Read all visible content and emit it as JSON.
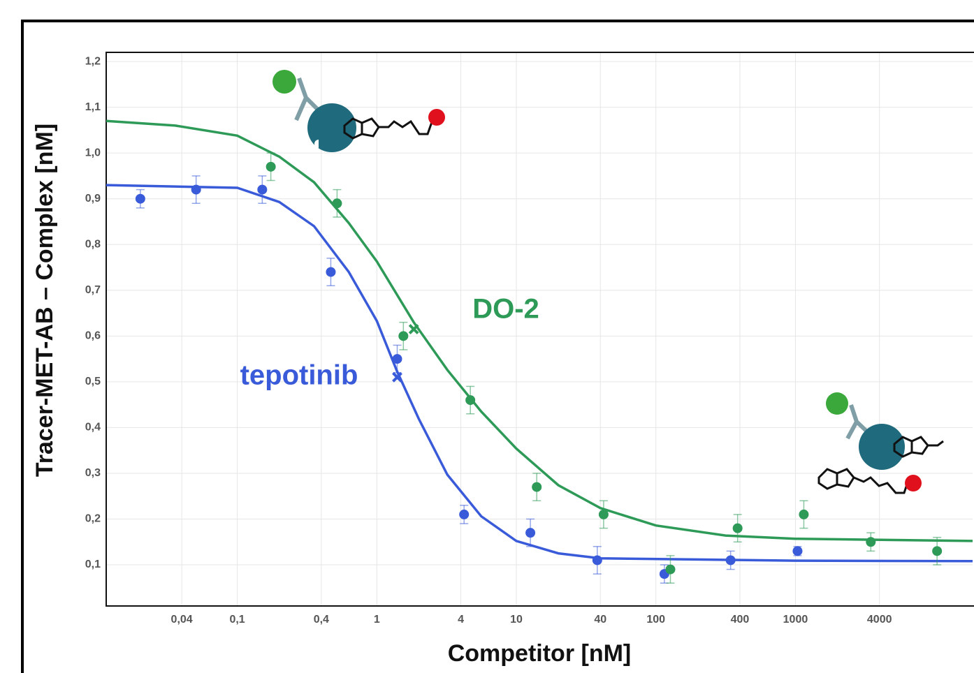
{
  "chart_data": {
    "type": "scatter",
    "x_label": "Competitor [nM]",
    "y_label": "Tracer-MET-AB – Complex [nM]",
    "xscale": "log",
    "grid": true,
    "xlim": [
      0.0115,
      18600
    ],
    "ylim": [
      0.01,
      1.22
    ],
    "xticks": [
      {
        "value": 0.04,
        "label": "0,04"
      },
      {
        "value": 0.1,
        "label": "0,1"
      },
      {
        "value": 0.4,
        "label": "0,4"
      },
      1,
      4,
      10,
      40,
      100,
      400,
      1000,
      4000
    ],
    "yticks": [
      {
        "value": 0.1,
        "label": "0,1"
      },
      {
        "value": 0.2,
        "label": "0,2"
      },
      {
        "value": 0.3,
        "label": "0,3"
      },
      {
        "value": 0.4,
        "label": "0,4"
      },
      {
        "value": 0.5,
        "label": "0,5"
      },
      {
        "value": 0.6,
        "label": "0,6"
      },
      {
        "value": 0.7,
        "label": "0,7"
      },
      {
        "value": 0.8,
        "label": "0,8"
      },
      {
        "value": 0.9,
        "label": "0,9"
      },
      {
        "value": 1.0,
        "label": "1,0"
      },
      {
        "value": 1.1,
        "label": "1,1"
      },
      {
        "value": 1.2,
        "label": "1,2"
      }
    ],
    "series": [
      {
        "name": "tepotinib",
        "color": "#3a5bd9",
        "x": [
          0.0202,
          0.0507,
          0.151,
          0.468,
          1.4,
          4.22,
          12.6,
          38.0,
          115,
          343,
          1035
        ],
        "values": [
          0.9,
          0.92,
          0.92,
          0.74,
          0.55,
          0.21,
          0.17,
          0.11,
          0.08,
          0.11,
          0.13
        ],
        "errors": [
          0.02,
          0.03,
          0.03,
          0.03,
          0.03,
          0.02,
          0.03,
          0.03,
          0.02,
          0.02,
          0.01
        ],
        "curve": {
          "x": [
            0.0115,
            0.1,
            0.2,
            0.355,
            0.63,
            1,
            1.4,
            2,
            3.2,
            5.6,
            10,
            20,
            40,
            1000,
            18600
          ],
          "values": [
            0.93,
            0.924,
            0.893,
            0.84,
            0.74,
            0.633,
            0.522,
            0.419,
            0.297,
            0.206,
            0.152,
            0.125,
            0.114,
            0.109,
            0.108
          ]
        },
        "ic50": {
          "x": 1.4,
          "value": 0.51
        }
      },
      {
        "name": "DO-2",
        "color": "#2e9a57",
        "x": [
          0.174,
          0.519,
          1.55,
          4.68,
          14.0,
          42.2,
          127,
          385,
          1148,
          3467,
          10350
        ],
        "values": [
          0.97,
          0.89,
          0.6,
          0.46,
          0.27,
          0.21,
          0.09,
          0.18,
          0.21,
          0.15,
          0.13
        ],
        "errors": [
          0.03,
          0.03,
          0.03,
          0.03,
          0.03,
          0.03,
          0.03,
          0.03,
          0.03,
          0.02,
          0.03
        ],
        "curve": {
          "x": [
            0.0115,
            0.036,
            0.1,
            0.2,
            0.355,
            0.63,
            1,
            1.84,
            3.2,
            5.6,
            10,
            20,
            40,
            100,
            316,
            1000,
            18600
          ],
          "values": [
            1.07,
            1.06,
            1.038,
            0.992,
            0.936,
            0.847,
            0.763,
            0.63,
            0.526,
            0.435,
            0.354,
            0.274,
            0.224,
            0.186,
            0.164,
            0.157,
            0.152
          ]
        },
        "ic50": {
          "x": 1.84,
          "value": 0.615
        }
      }
    ]
  }
}
